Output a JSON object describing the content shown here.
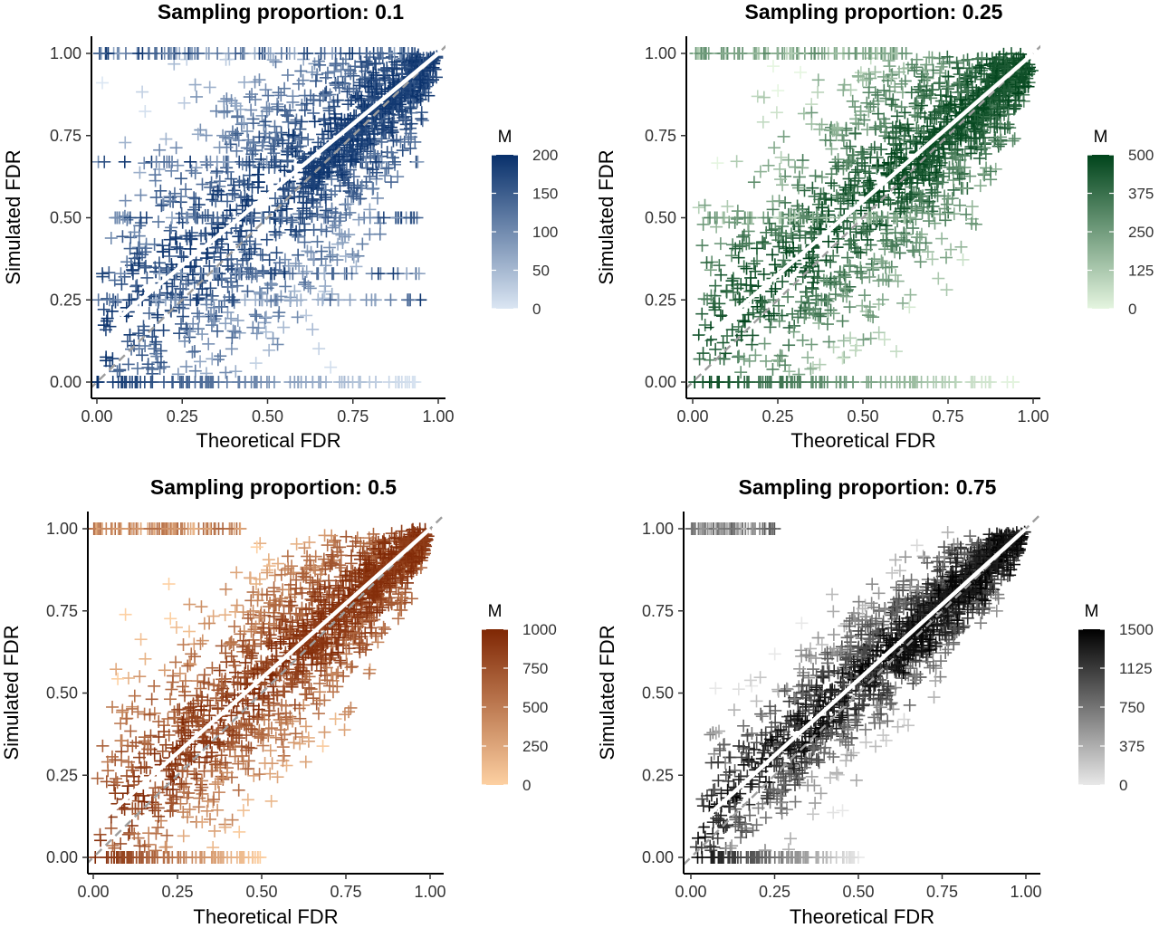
{
  "chart_data": [
    {
      "type": "scatter",
      "title": "Sampling proportion: 0.1",
      "xlabel": "Theoretical FDR",
      "ylabel": "Simulated FDR",
      "xlim": [
        0,
        1
      ],
      "ylim": [
        0,
        1
      ],
      "x_ticks": [
        "0.00",
        "0.25",
        "0.50",
        "0.75",
        "1.00"
      ],
      "y_ticks": [
        "0.00",
        "0.25",
        "0.50",
        "0.75",
        "1.00"
      ],
      "grid": false,
      "marker": "cross",
      "color_scale": {
        "name": "M",
        "min": 0,
        "max": 200,
        "ticks": [
          "0",
          "50",
          "100",
          "150",
          "200"
        ],
        "colors": [
          "#dbe6f3",
          "#08306b"
        ]
      },
      "legend_position": "right",
      "reference_line": {
        "style": "dashed",
        "color": "#9e9e9e",
        "x": [
          0,
          1
        ],
        "y": [
          0,
          1
        ]
      },
      "fit_line": {
        "color": "#ffffff",
        "x": [
          0.07,
          1.0
        ],
        "y": [
          0.2,
          1.0
        ]
      },
      "band_y_values": [
        0,
        0.25,
        0.33,
        0.5,
        0.67,
        1.0
      ]
    },
    {
      "type": "scatter",
      "title": "Sampling proportion: 0.25",
      "xlabel": "Theoretical FDR",
      "ylabel": "Simulated FDR",
      "xlim": [
        0,
        1
      ],
      "ylim": [
        0,
        1
      ],
      "x_ticks": [
        "0.00",
        "0.25",
        "0.50",
        "0.75",
        "1.00"
      ],
      "y_ticks": [
        "0.00",
        "0.25",
        "0.50",
        "0.75",
        "1.00"
      ],
      "grid": false,
      "marker": "cross",
      "color_scale": {
        "name": "M",
        "min": 0,
        "max": 500,
        "ticks": [
          "0",
          "125",
          "250",
          "375",
          "500"
        ],
        "colors": [
          "#e5f5e0",
          "#00441b"
        ]
      },
      "legend_position": "right",
      "reference_line": {
        "style": "dashed",
        "color": "#9e9e9e",
        "x": [
          0,
          1
        ],
        "y": [
          0,
          1
        ]
      },
      "fit_line": {
        "color": "#ffffff",
        "x": [
          0.02,
          1.0
        ],
        "y": [
          0.12,
          1.0
        ]
      },
      "band_y_values": [
        0,
        0.5,
        1.0
      ]
    },
    {
      "type": "scatter",
      "title": "Sampling proportion: 0.5",
      "xlabel": "Theoretical FDR",
      "ylabel": "Simulated FDR",
      "xlim": [
        0,
        1
      ],
      "ylim": [
        0,
        1
      ],
      "x_ticks": [
        "0.00",
        "0.25",
        "0.50",
        "0.75",
        "1.00"
      ],
      "y_ticks": [
        "0.00",
        "0.25",
        "0.50",
        "0.75",
        "1.00"
      ],
      "grid": false,
      "marker": "cross",
      "color_scale": {
        "name": "M",
        "min": 0,
        "max": 1000,
        "ticks": [
          "0",
          "250",
          "500",
          "750",
          "1000"
        ],
        "colors": [
          "#fdd0a2",
          "#7f2704"
        ]
      },
      "legend_position": "right",
      "reference_line": {
        "style": "dashed",
        "color": "#9e9e9e",
        "x": [
          0,
          1
        ],
        "y": [
          0,
          1
        ]
      },
      "fit_line": {
        "color": "#ffffff",
        "x": [
          0.0,
          1.0
        ],
        "y": [
          0.09,
          1.0
        ]
      },
      "band_y_values": [
        0,
        1.0
      ]
    },
    {
      "type": "scatter",
      "title": "Sampling proportion: 0.75",
      "xlabel": "Theoretical FDR",
      "ylabel": "Simulated FDR",
      "xlim": [
        0,
        1
      ],
      "ylim": [
        0,
        1
      ],
      "x_ticks": [
        "0.00",
        "0.25",
        "0.50",
        "0.75",
        "1.00"
      ],
      "y_ticks": [
        "0.00",
        "0.25",
        "0.50",
        "0.75",
        "1.00"
      ],
      "grid": false,
      "marker": "cross",
      "color_scale": {
        "name": "M",
        "min": 0,
        "max": 1500,
        "ticks": [
          "0",
          "375",
          "750",
          "1125",
          "1500"
        ],
        "colors": [
          "#e8e8e8",
          "#000000"
        ]
      },
      "legend_position": "right",
      "reference_line": {
        "style": "dashed",
        "color": "#9e9e9e",
        "x": [
          0,
          1
        ],
        "y": [
          0,
          1
        ]
      },
      "fit_line": {
        "color": "#ffffff",
        "x": [
          0.0,
          1.0
        ],
        "y": [
          0.08,
          1.0
        ]
      },
      "band_y_values": [
        0,
        1.0
      ]
    }
  ]
}
